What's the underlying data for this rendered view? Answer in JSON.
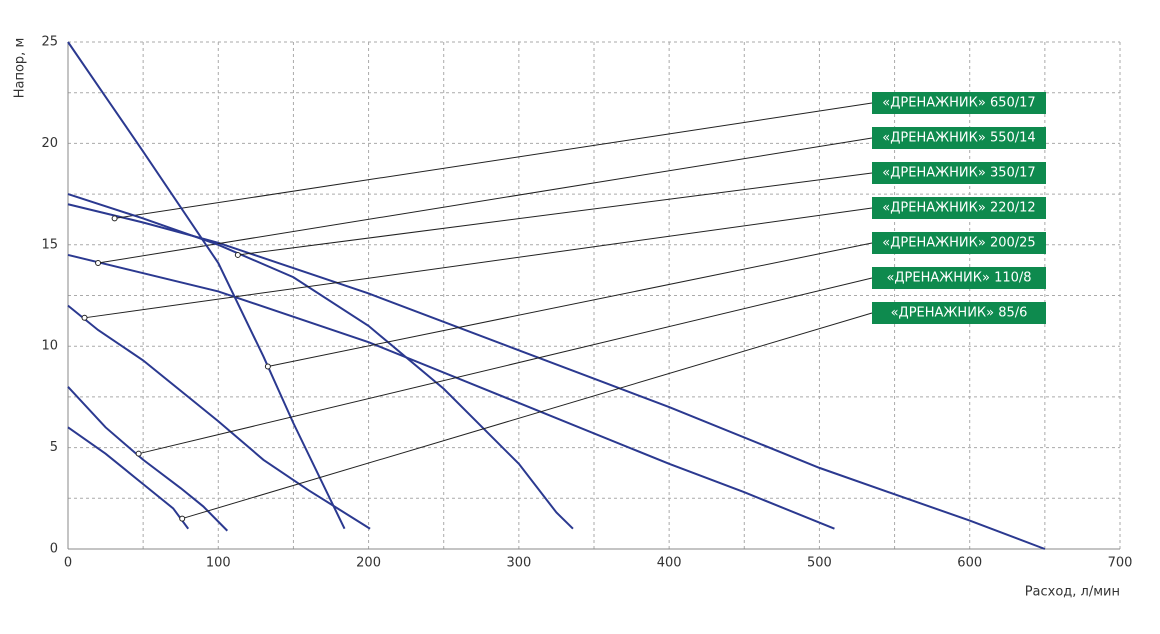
{
  "chart_data": {
    "type": "line",
    "y_label": "Напор, м",
    "x_label": "Расход, л/мин",
    "xlim": [
      0,
      700
    ],
    "ylim": [
      0,
      25
    ],
    "xticks": [
      0,
      100,
      200,
      300,
      400,
      500,
      600,
      700
    ],
    "yticks": [
      0,
      5,
      10,
      15,
      20,
      25
    ],
    "grid": true,
    "color": "#2b3990",
    "label_color": "#0e8a4e",
    "series": [
      {
        "name": "«ДРЕНАЖНИК» 650/17",
        "x": [
          0,
          50,
          100,
          200,
          300,
          400,
          500,
          600,
          650
        ],
        "values": [
          17,
          16.1,
          15.1,
          12.6,
          9.8,
          7.0,
          4.0,
          1.4,
          0
        ],
        "label_point": {
          "x": 31,
          "y": 16.3
        }
      },
      {
        "name": "«ДРЕНАЖНИК» 550/14",
        "x": [
          0,
          100,
          200,
          300,
          400,
          450,
          510
        ],
        "values": [
          14.5,
          12.7,
          10.2,
          7.2,
          4.2,
          2.8,
          1.0
        ],
        "label_point": {
          "x": 20,
          "y": 14.1
        }
      },
      {
        "name": "«ДРЕНАЖНИК» 350/17",
        "x": [
          0,
          50,
          100,
          150,
          200,
          250,
          300,
          325,
          336
        ],
        "values": [
          17.5,
          16.3,
          15.0,
          13.4,
          11.0,
          7.9,
          4.2,
          1.8,
          1.0
        ],
        "label_point": {
          "x": 113,
          "y": 14.5
        }
      },
      {
        "name": "«ДРЕНАЖНИК» 220/12",
        "x": [
          0,
          20,
          50,
          80,
          100,
          130,
          160,
          201
        ],
        "values": [
          12,
          10.8,
          9.3,
          7.5,
          6.3,
          4.4,
          2.9,
          1.0
        ],
        "label_point": {
          "x": 11,
          "y": 11.4
        }
      },
      {
        "name": "«ДРЕНАЖНИК» 200/25",
        "x": [
          0,
          25,
          50,
          100,
          130,
          150,
          184
        ],
        "values": [
          25,
          22.3,
          19.6,
          14.1,
          9.5,
          6.2,
          1.0
        ],
        "label_point": {
          "x": 133,
          "y": 9.0
        }
      },
      {
        "name": "«ДРЕНАЖНИК» 110/8",
        "x": [
          0,
          25,
          50,
          75,
          90,
          106
        ],
        "values": [
          8,
          6.0,
          4.4,
          3.0,
          2.1,
          0.9
        ],
        "label_point": {
          "x": 47,
          "y": 4.7
        }
      },
      {
        "name": "«ДРЕНАЖНИК» 85/6",
        "x": [
          0,
          25,
          50,
          70,
          80
        ],
        "values": [
          6,
          4.7,
          3.2,
          2.0,
          1.0
        ],
        "label_point": {
          "x": 76,
          "y": 1.5
        }
      }
    ]
  }
}
